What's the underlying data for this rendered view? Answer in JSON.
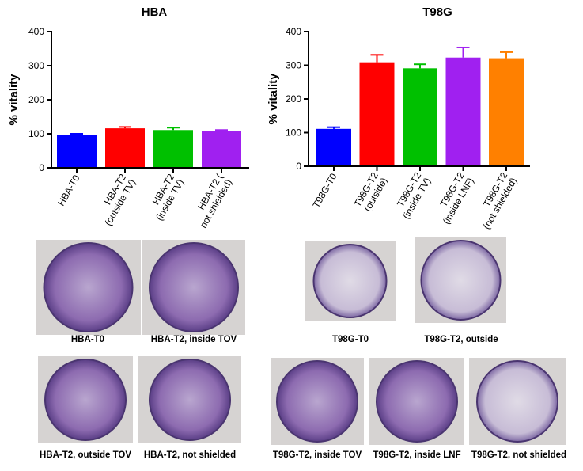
{
  "chart_data": [
    {
      "type": "bar",
      "title": "HBA",
      "y_label": "% vitality",
      "categories": [
        "HBA-T0",
        "HBA-T2\n(outside TV)",
        "HBA-T2\n(inside TV)",
        "HBA-T2 (\nnot shielded)"
      ],
      "values": [
        97,
        116,
        111,
        107
      ],
      "errors": [
        3,
        4,
        7,
        4
      ],
      "colors": [
        "#0000ff",
        "#ff0000",
        "#00c000",
        "#a020f0"
      ],
      "ylim": [
        0,
        400
      ],
      "yticks": [
        0,
        100,
        200,
        300,
        400
      ]
    },
    {
      "type": "bar",
      "title": "T98G",
      "y_label": "% vitality",
      "categories": [
        "T98G-T0",
        "T98G-T2\n(outside)",
        "T98G-T2\n(inside TV)",
        "T98G-T2\n(inside LNF)",
        "T98G-T2\n(not shielded)"
      ],
      "values": [
        111,
        309,
        291,
        323,
        321
      ],
      "errors": [
        5,
        22,
        12,
        30,
        18
      ],
      "colors": [
        "#0000ff",
        "#ff0000",
        "#00c000",
        "#a020f0",
        "#ff8000"
      ],
      "ylim": [
        0,
        400
      ],
      "yticks": [
        0,
        100,
        200,
        300,
        400
      ]
    }
  ],
  "images": [
    {
      "caption": "HBA-T0"
    },
    {
      "caption": "HBA-T2, inside TOV"
    },
    {
      "caption": "HBA-T2, outside TOV"
    },
    {
      "caption": "HBA-T2, not shielded"
    },
    {
      "caption": "T98G-T0"
    },
    {
      "caption": "T98G-T2, outside"
    },
    {
      "caption": "T98G-T2, inside TOV"
    },
    {
      "caption": "T98G-T2, inside LNF"
    },
    {
      "caption": "T98G-T2, not shielded"
    }
  ]
}
